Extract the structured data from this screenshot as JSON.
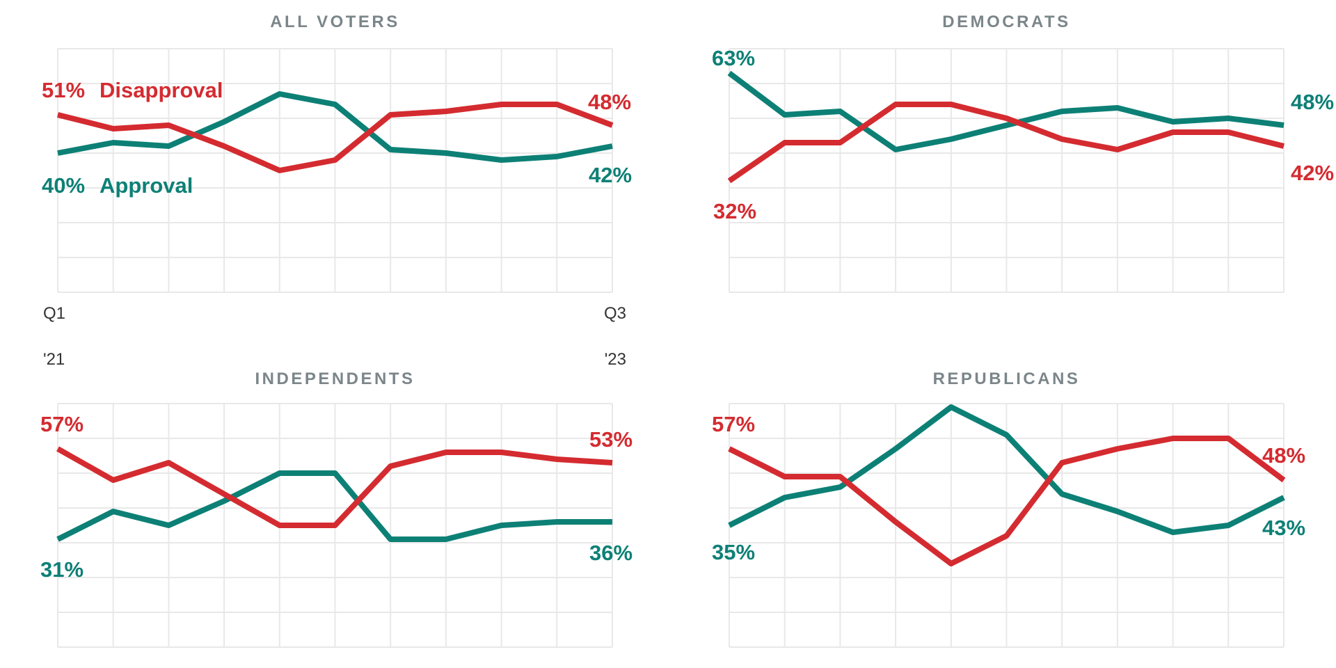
{
  "colors": {
    "disapproval": "#d42b30",
    "approval": "#0d8076",
    "title": "#7b868a",
    "axis_text": "#333333",
    "grid": "#e8e8e8",
    "background": "#ffffff"
  },
  "x_axis": {
    "start": {
      "line1": "Q1",
      "line2": "'21"
    },
    "end": {
      "line1": "Q3",
      "line2": "'23"
    }
  },
  "chart_data": [
    {
      "type": "line",
      "title": "ALL VOTERS",
      "x_tick_labels": [
        "Q1 '21",
        "Q3 '23"
      ],
      "x_points": 11,
      "ylim": [
        0,
        70
      ],
      "grid": {
        "cols": 10,
        "rows": 7,
        "on": true
      },
      "legend_position": "inline-left",
      "series": [
        {
          "name": "Disapproval",
          "color_key": "disapproval",
          "start_label": "51%",
          "end_label": "48%",
          "values": [
            51,
            47,
            48,
            42,
            35,
            38,
            51,
            52,
            54,
            54,
            48
          ]
        },
        {
          "name": "Approval",
          "color_key": "approval",
          "start_label": "40%",
          "end_label": "42%",
          "values": [
            40,
            43,
            42,
            49,
            57,
            54,
            41,
            40,
            38,
            39,
            42
          ]
        }
      ]
    },
    {
      "type": "line",
      "title": "DEMOCRATS",
      "x_points": 11,
      "ylim": [
        0,
        70
      ],
      "grid": {
        "cols": 10,
        "rows": 7,
        "on": true
      },
      "series": [
        {
          "name": "Disapproval",
          "color_key": "disapproval",
          "start_label": "32%",
          "end_label": "42%",
          "values": [
            32,
            43,
            43,
            54,
            54,
            50,
            44,
            41,
            46,
            46,
            42
          ]
        },
        {
          "name": "Approval",
          "color_key": "approval",
          "start_label": "63%",
          "end_label": "48%",
          "values": [
            63,
            51,
            52,
            41,
            44,
            48,
            52,
            53,
            49,
            50,
            48
          ]
        }
      ]
    },
    {
      "type": "line",
      "title": "INDEPENDENTS",
      "x_points": 11,
      "ylim": [
        0,
        70
      ],
      "grid": {
        "cols": 10,
        "rows": 7,
        "on": true
      },
      "series": [
        {
          "name": "Disapproval",
          "color_key": "disapproval",
          "start_label": "57%",
          "end_label": "53%",
          "values": [
            57,
            48,
            53,
            44,
            35,
            35,
            52,
            56,
            56,
            54,
            53
          ]
        },
        {
          "name": "Approval",
          "color_key": "approval",
          "start_label": "31%",
          "end_label": "36%",
          "values": [
            31,
            39,
            35,
            42,
            50,
            50,
            31,
            31,
            35,
            36,
            36
          ]
        }
      ]
    },
    {
      "type": "line",
      "title": "REPUBLICANS",
      "x_points": 11,
      "ylim": [
        0,
        70
      ],
      "grid": {
        "cols": 10,
        "rows": 7,
        "on": true
      },
      "series": [
        {
          "name": "Disapproval",
          "color_key": "disapproval",
          "start_label": "57%",
          "end_label": "48%",
          "values": [
            57,
            49,
            49,
            36,
            24,
            32,
            53,
            57,
            60,
            60,
            48
          ]
        },
        {
          "name": "Approval",
          "color_key": "approval",
          "start_label": "35%",
          "end_label": "43%",
          "values": [
            35,
            43,
            46,
            57,
            69,
            61,
            44,
            39,
            33,
            35,
            43
          ]
        }
      ]
    }
  ]
}
